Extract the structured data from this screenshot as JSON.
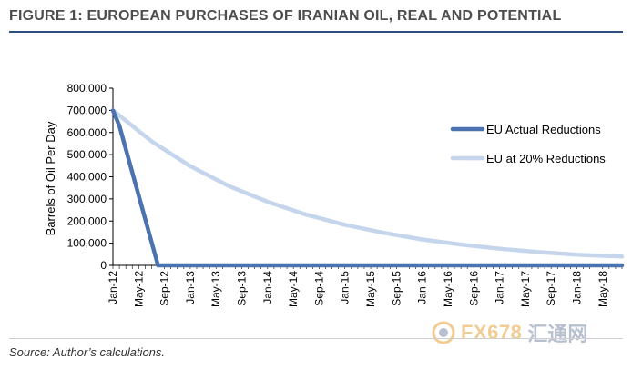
{
  "header": {
    "title": "FIGURE 1: EUROPEAN PURCHASES OF IRANIAN OIL, REAL AND POTENTIAL"
  },
  "footer": {
    "source": "Source: Author’s calculations."
  },
  "watermark": {
    "text": "FX678",
    "cn_text": "汇通网",
    "icon": "fx678-logo-icon"
  },
  "colors": {
    "title": "#4d4d4d",
    "rule": "#2e4f7f",
    "eu_actual": "#4a73b0",
    "eu_20pct": "#c5d6ec"
  },
  "chart_data": {
    "type": "line",
    "title": "FIGURE 1: EUROPEAN PURCHASES OF IRANIAN OIL, REAL AND POTENTIAL",
    "xlabel": "",
    "ylabel": "Barrels of Oil Per Day",
    "ylim": [
      0,
      800000
    ],
    "yticks": [
      0,
      100000,
      200000,
      300000,
      400000,
      500000,
      600000,
      700000,
      800000
    ],
    "ytick_labels": [
      "0",
      "100,000",
      "200,000",
      "300,000",
      "400,000",
      "500,000",
      "600,000",
      "700,000",
      "800,000"
    ],
    "x_start": "Jan-12",
    "n_months": 80,
    "xtick_labels": [
      "Jan-12",
      "May-12",
      "Sep-12",
      "Jan-13",
      "May-13",
      "Sep-13",
      "Jan-14",
      "May-14",
      "Sep-14",
      "Jan-15",
      "May-15",
      "Sep-15",
      "Jan-16",
      "May-16",
      "Sep-16",
      "Jan-17",
      "May-17",
      "Sep-17",
      "Jan-18",
      "May-18"
    ],
    "xtick_interval_months": 4,
    "legend_position": "right",
    "grid": false,
    "series": [
      {
        "name": "EU Actual Reductions",
        "color": "#4a73b0",
        "points": [
          [
            0,
            700000
          ],
          [
            1,
            630000
          ],
          [
            7,
            0
          ],
          [
            79,
            0
          ]
        ]
      },
      {
        "name": "EU at 20% Reductions",
        "color": "#c5d6ec",
        "points": [
          [
            0,
            700000
          ],
          [
            6,
            560000
          ],
          [
            12,
            448000
          ],
          [
            18,
            358000
          ],
          [
            24,
            287000
          ],
          [
            30,
            229000
          ],
          [
            36,
            183000
          ],
          [
            42,
            147000
          ],
          [
            48,
            117000
          ],
          [
            54,
            94000
          ],
          [
            60,
            75000
          ],
          [
            66,
            60000
          ],
          [
            72,
            48000
          ],
          [
            79,
            40000
          ]
        ]
      }
    ]
  }
}
